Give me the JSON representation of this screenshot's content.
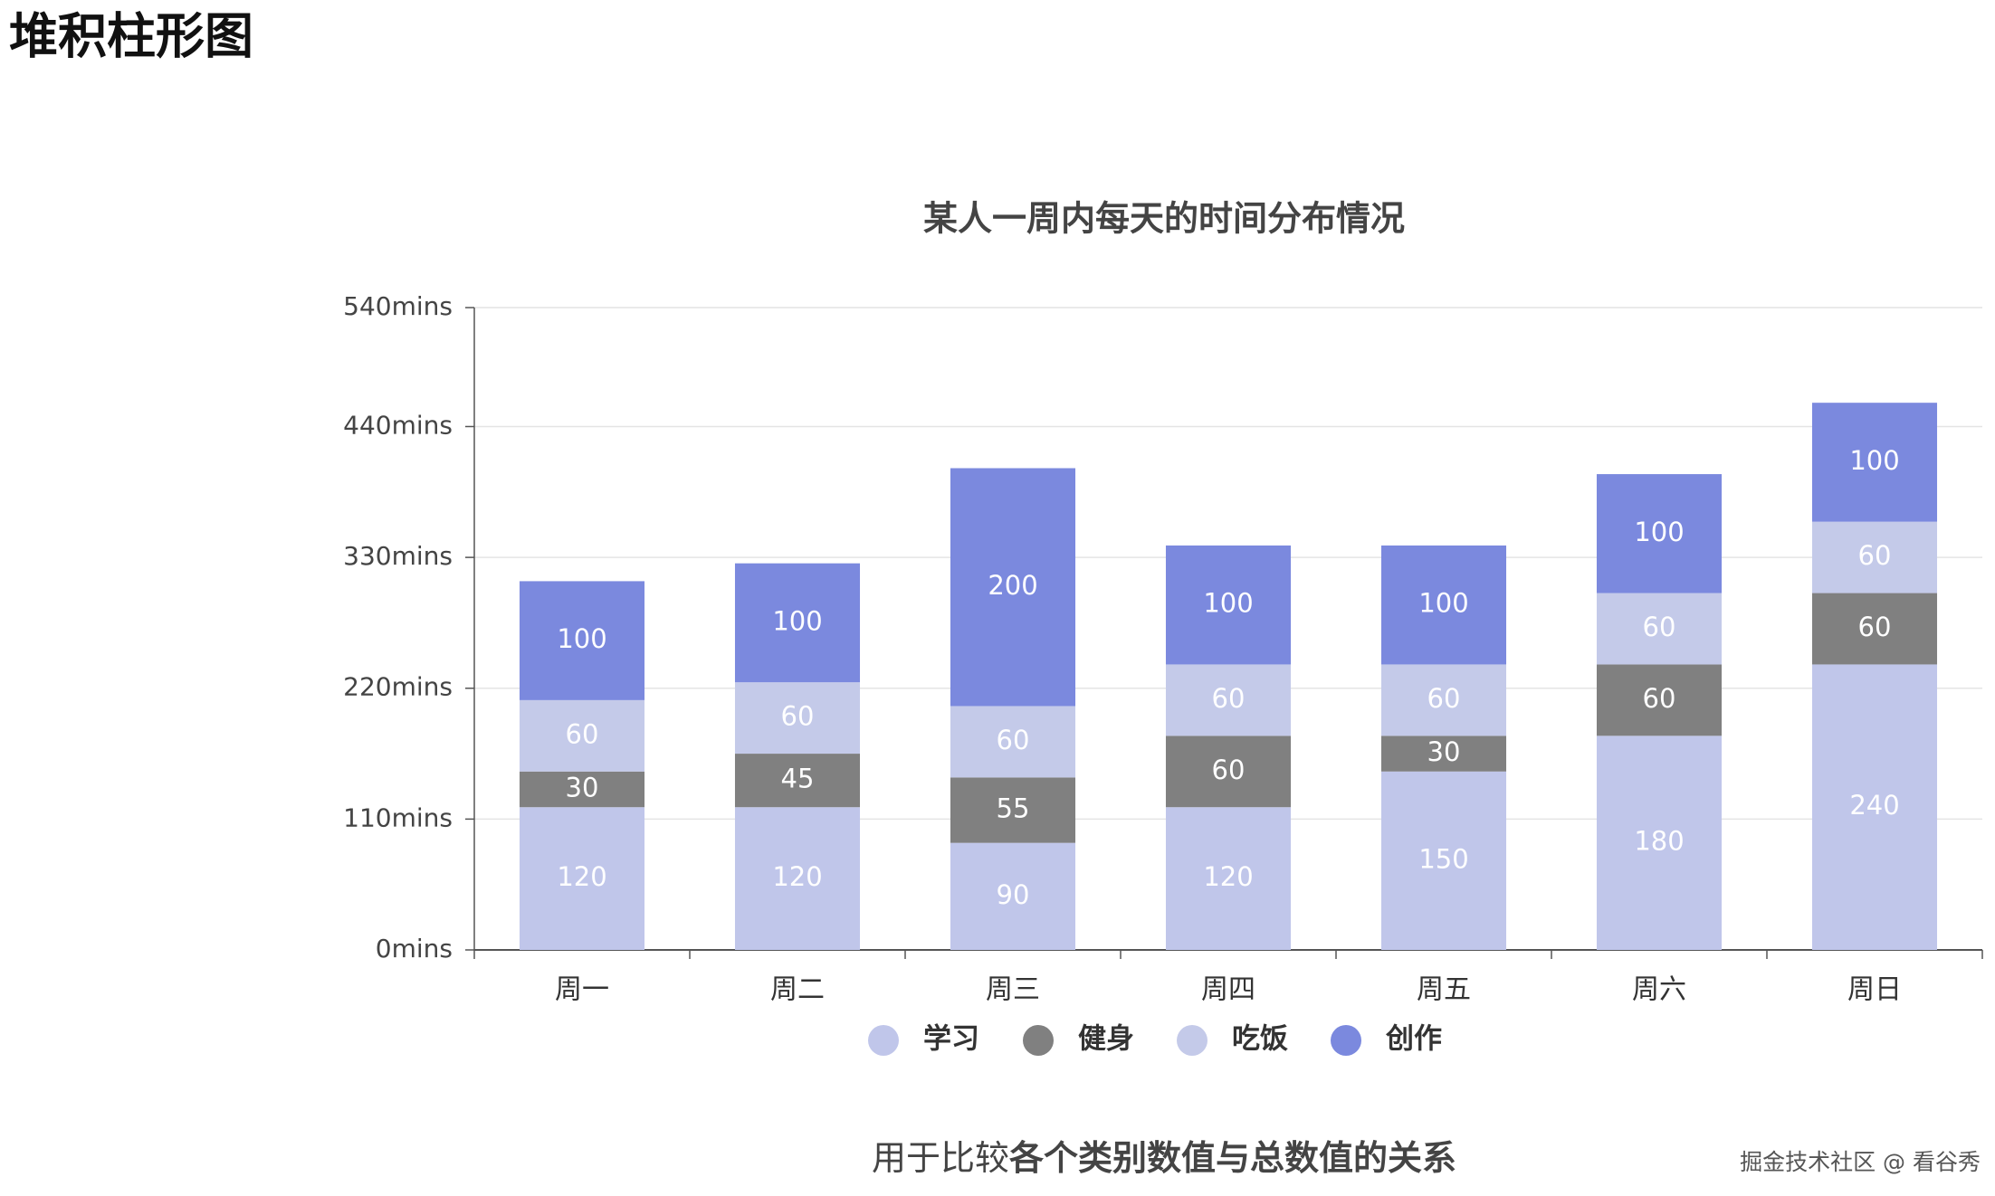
{
  "heading": "堆积柱形图",
  "chart_data": {
    "type": "stacked-bar",
    "title": "某人一周内每天的时间分布情况",
    "categories": [
      "周一",
      "周二",
      "周三",
      "周四",
      "周五",
      "周六",
      "周日"
    ],
    "series": [
      {
        "name": "学习",
        "color": "#c0c6ea",
        "values": [
          120,
          120,
          90,
          120,
          150,
          180,
          240
        ]
      },
      {
        "name": "健身",
        "color": "#808080",
        "values": [
          30,
          45,
          55,
          60,
          30,
          60,
          60
        ]
      },
      {
        "name": "吃饭",
        "color": "#c4cae9",
        "values": [
          60,
          60,
          60,
          60,
          60,
          60,
          60
        ]
      },
      {
        "name": "创作",
        "color": "#7b89de",
        "values": [
          100,
          100,
          200,
          100,
          100,
          100,
          100
        ]
      }
    ],
    "ylim": [
      0,
      540
    ],
    "yticks": [
      {
        "value": 0,
        "label": "0mins"
      },
      {
        "value": 110,
        "label": "110mins"
      },
      {
        "value": 220,
        "label": "220mins"
      },
      {
        "value": 330,
        "label": "330mins"
      },
      {
        "value": 440,
        "label": "440mins"
      },
      {
        "value": 540,
        "label": "540mins"
      }
    ],
    "grid": true,
    "legend": "bottom"
  },
  "caption": {
    "plain": "用于比较",
    "bold": "各个类别数值与总数值的关系"
  },
  "watermark": "掘金技术社区 @ 看谷秀"
}
